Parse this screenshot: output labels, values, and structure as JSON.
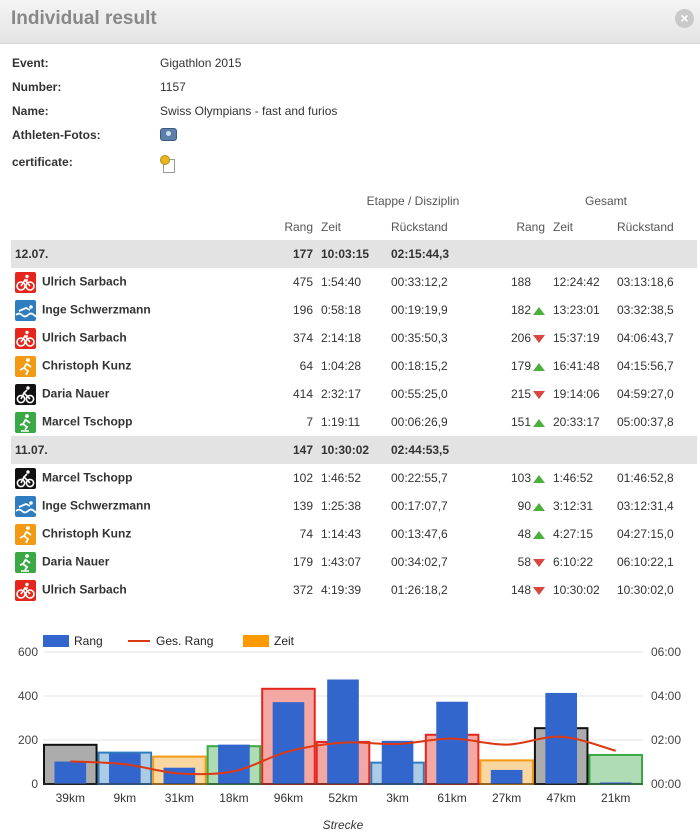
{
  "window": {
    "title": "Individual result",
    "close_glyph": "×"
  },
  "info": [
    {
      "label": "Event:",
      "value": "Gigathlon 2015"
    },
    {
      "label": "Number:",
      "value": "1157"
    },
    {
      "label": "Name:",
      "value": "Swiss Olympians - fast and furios"
    },
    {
      "label": "Athleten-Fotos:",
      "icon": "camera-icon"
    },
    {
      "label": "certificate:",
      "icon": "certificate-icon"
    }
  ],
  "table": {
    "group_headers": {
      "etappe": "Etappe / Disziplin",
      "gesamt": "Gesamt"
    },
    "columns": [
      "Rang",
      "Zeit",
      "Rückstand",
      "Rang",
      "Zeit",
      "Rückstand"
    ],
    "days": [
      {
        "date": "12.07.",
        "rang": "177",
        "zeit": "10:03:15",
        "rueckstand": "02:15:44,3",
        "rows": [
          {
            "sport": "bike",
            "name": "Ulrich Sarbach",
            "rang": "475",
            "zeit": "1:54:40",
            "rueckstand": "00:33:12,2",
            "g_rang": "188",
            "trend": "",
            "g_zeit": "12:24:42",
            "g_rueckstand": "03:13:18,6"
          },
          {
            "sport": "swim",
            "name": "Inge Schwerzmann",
            "rang": "196",
            "zeit": "0:58:18",
            "rueckstand": "00:19:19,9",
            "g_rang": "182",
            "trend": "up",
            "g_zeit": "13:23:01",
            "g_rueckstand": "03:32:38,5"
          },
          {
            "sport": "bike",
            "name": "Ulrich Sarbach",
            "rang": "374",
            "zeit": "2:14:18",
            "rueckstand": "00:35:50,3",
            "g_rang": "206",
            "trend": "down",
            "g_zeit": "15:37:19",
            "g_rueckstand": "04:06:43,7"
          },
          {
            "sport": "run",
            "name": "Christoph Kunz",
            "rang": "64",
            "zeit": "1:04:28",
            "rueckstand": "00:18:15,2",
            "g_rang": "179",
            "trend": "up",
            "g_zeit": "16:41:48",
            "g_rueckstand": "04:15:56,7"
          },
          {
            "sport": "mtb",
            "name": "Daria Nauer",
            "rang": "414",
            "zeit": "2:32:17",
            "rueckstand": "00:55:25,0",
            "g_rang": "215",
            "trend": "down",
            "g_zeit": "19:14:06",
            "g_rueckstand": "04:59:27,0"
          },
          {
            "sport": "inline",
            "name": "Marcel Tschopp",
            "rang": "7",
            "zeit": "1:19:11",
            "rueckstand": "00:06:26,9",
            "g_rang": "151",
            "trend": "up",
            "g_zeit": "20:33:17",
            "g_rueckstand": "05:00:37,8"
          }
        ]
      },
      {
        "date": "11.07.",
        "rang": "147",
        "zeit": "10:30:02",
        "rueckstand": "02:44:53,5",
        "rows": [
          {
            "sport": "mtb",
            "name": "Marcel Tschopp",
            "rang": "102",
            "zeit": "1:46:52",
            "rueckstand": "00:22:55,7",
            "g_rang": "103",
            "trend": "up",
            "g_zeit": "1:46:52",
            "g_rueckstand": "01:46:52,8"
          },
          {
            "sport": "swim",
            "name": "Inge Schwerzmann",
            "rang": "139",
            "zeit": "1:25:38",
            "rueckstand": "00:17:07,7",
            "g_rang": "90",
            "trend": "up",
            "g_zeit": "3:12:31",
            "g_rueckstand": "03:12:31,4"
          },
          {
            "sport": "run",
            "name": "Christoph Kunz",
            "rang": "74",
            "zeit": "1:14:43",
            "rueckstand": "00:13:47,6",
            "g_rang": "48",
            "trend": "up",
            "g_zeit": "4:27:15",
            "g_rueckstand": "04:27:15,0"
          },
          {
            "sport": "inline",
            "name": "Daria Nauer",
            "rang": "179",
            "zeit": "1:43:07",
            "rueckstand": "00:34:02,7",
            "g_rang": "58",
            "trend": "down",
            "g_zeit": "6:10:22",
            "g_rueckstand": "06:10:22,1"
          },
          {
            "sport": "bike",
            "name": "Ulrich Sarbach",
            "rang": "372",
            "zeit": "4:19:39",
            "rueckstand": "01:26:18,2",
            "g_rang": "148",
            "trend": "down",
            "g_zeit": "10:30:02",
            "g_rueckstand": "10:30:02,0"
          }
        ]
      }
    ]
  },
  "colors": {
    "bike": "#e4261c",
    "swim": "#2f7dbf",
    "run": "#f39a14",
    "mtb": "#111111",
    "inline": "#3aa845",
    "rang_bar": "#3366cc",
    "ges_line": "#dc3912",
    "zeit_legend": "#ff9900",
    "up": "#4caf3c",
    "down": "#d9463c"
  },
  "chart_data": {
    "type": "bar",
    "categories": [
      "39km",
      "9km",
      "31km",
      "18km",
      "96km",
      "52km",
      "3km",
      "61km",
      "27km",
      "47km",
      "21km"
    ],
    "series": [
      {
        "name": "Rang",
        "values": [
          102,
          139,
          74,
          179,
          372,
          475,
          196,
          374,
          64,
          414,
          7
        ]
      },
      {
        "name": "Ges. Rang",
        "values": [
          103,
          90,
          48,
          58,
          148,
          188,
          182,
          206,
          179,
          215,
          151
        ]
      },
      {
        "name": "Zeit",
        "values": [
          "1:46:52",
          "1:25:38",
          "1:14:43",
          "1:43:07",
          "4:19:39",
          "1:54:40",
          "0:58:18",
          "2:14:18",
          "1:04:28",
          "2:32:17",
          "1:19:11"
        ]
      }
    ],
    "zeit_sport": [
      "mtb",
      "swim",
      "run",
      "inline",
      "bike",
      "bike",
      "swim",
      "bike",
      "run",
      "mtb",
      "inline"
    ],
    "y_left_ticks": [
      "0",
      "200",
      "400",
      "600"
    ],
    "y_left_range": [
      0,
      600
    ],
    "y_right_ticks": [
      "00:00",
      "02:00",
      "04:00",
      "06:00"
    ],
    "y_right_range_hours": [
      0,
      6
    ],
    "xlabel": "Strecke",
    "legend_position": "top-left"
  }
}
